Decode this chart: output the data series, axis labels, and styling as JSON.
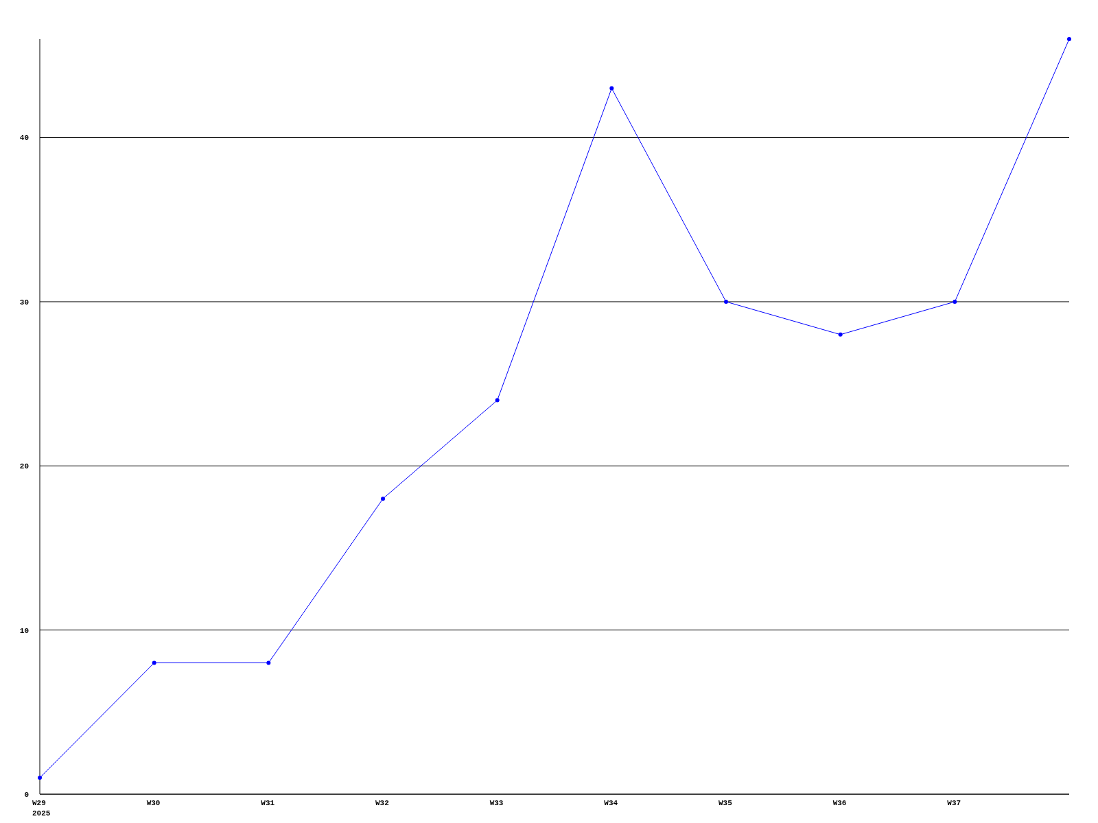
{
  "chart_data": {
    "type": "line",
    "categories": [
      "W29\n2025",
      "W30",
      "W31",
      "W32",
      "W33",
      "W34",
      "W35",
      "W36",
      "W37",
      null
    ],
    "series": [
      {
        "color": "#0000ff",
        "values": [
          1,
          8,
          8,
          18,
          24,
          43,
          30,
          28,
          30,
          46
        ]
      }
    ],
    "ylim": [
      0,
      46
    ],
    "yticks": [
      0,
      10,
      20,
      30,
      40
    ],
    "grid": "y",
    "marker": "circle",
    "line_style": "solid"
  }
}
